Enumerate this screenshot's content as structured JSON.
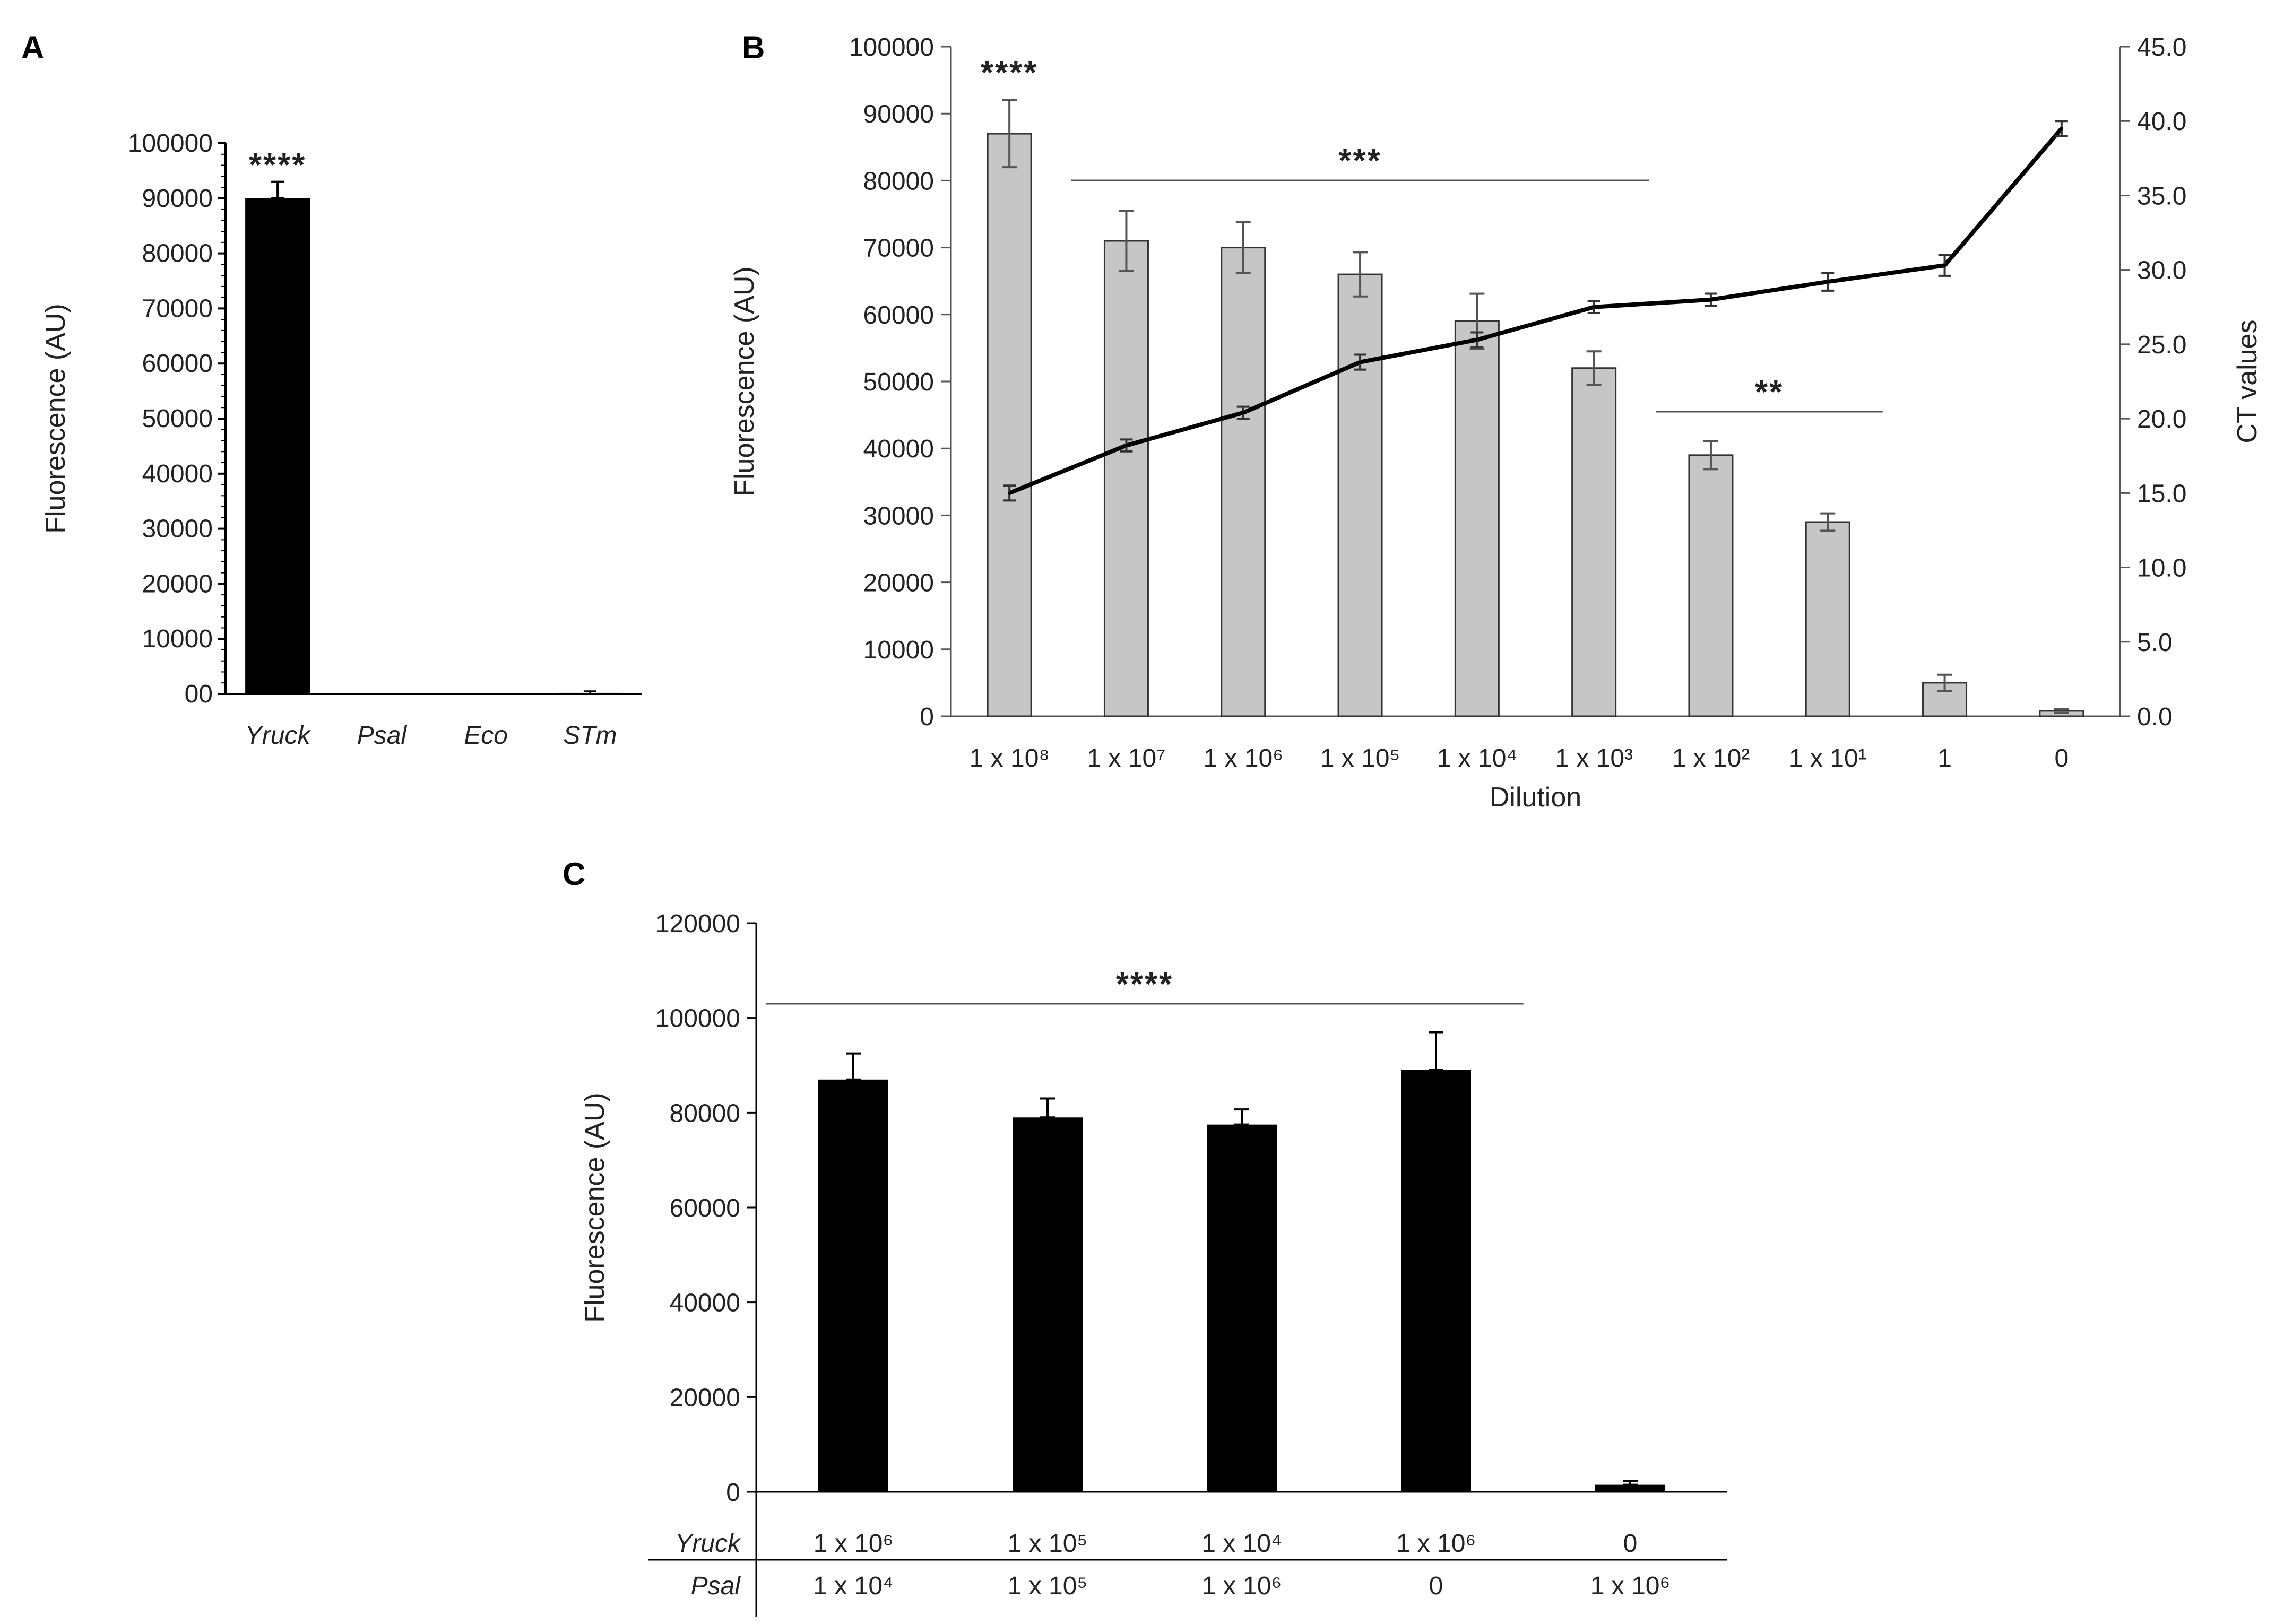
{
  "chart_data": [
    {
      "panel": "A",
      "type": "bar",
      "categories": [
        "Yruck",
        "Psal",
        "Eco",
        "STm"
      ],
      "values": [
        90000,
        0,
        0,
        200
      ],
      "errors": [
        3000,
        0,
        0,
        300
      ],
      "ylabel": "Fluorescence (AU)",
      "ylim": [
        0,
        100000
      ],
      "yticks": [
        "00",
        "10000",
        "20000",
        "30000",
        "40000",
        "50000",
        "60000",
        "70000",
        "80000",
        "90000",
        "100000"
      ],
      "annotations": [
        {
          "text": "****",
          "category": "Yruck"
        }
      ],
      "colors": {
        "bar": "#000000"
      }
    },
    {
      "panel": "B",
      "type": "bar",
      "categories": [
        "1 x 10⁸",
        "1 x 10⁷",
        "1 x 10⁶",
        "1 x 10⁵",
        "1 x 10⁴",
        "1 x 10³",
        "1 x 10²",
        "1 x 10¹",
        "1",
        "0"
      ],
      "xlabel": "Dilution",
      "ylabel": "Fluorescence (AU)",
      "y2label": "CT values",
      "ylim": [
        0,
        100000
      ],
      "y2lim": [
        0,
        45
      ],
      "yticks": [
        "0",
        "10000",
        "20000",
        "30000",
        "40000",
        "50000",
        "60000",
        "70000",
        "80000",
        "90000",
        "100000"
      ],
      "y2ticks": [
        "0.0",
        "5.0",
        "10.0",
        "15.0",
        "20.0",
        "25.0",
        "30.0",
        "35.0",
        "40.0",
        "45.0"
      ],
      "series": [
        {
          "name": "Fluorescence",
          "type": "bar",
          "axis": "left",
          "values": [
            87000,
            71000,
            70000,
            66000,
            59000,
            52000,
            39000,
            29000,
            5000,
            800
          ],
          "errors": [
            5000,
            4500,
            3800,
            3300,
            4100,
            2500,
            2100,
            1300,
            1200,
            300
          ]
        },
        {
          "name": "CT values",
          "type": "line",
          "axis": "right",
          "values": [
            15.0,
            18.2,
            20.4,
            23.8,
            25.3,
            27.5,
            28.0,
            29.2,
            30.3,
            39.5
          ],
          "errors": [
            0.5,
            0.4,
            0.4,
            0.5,
            0.5,
            0.4,
            0.4,
            0.6,
            0.7,
            0.5
          ]
        }
      ],
      "annotations": [
        {
          "text": "****",
          "category": "1 x 10⁸"
        },
        {
          "text": "***",
          "from": "1 x 10⁷",
          "to": "1 x 10³"
        },
        {
          "text": "**",
          "from": "1 x 10²",
          "to": "1 x 10¹"
        }
      ],
      "colors": {
        "bar": "#c6c6c6",
        "bar_edge": "#333333",
        "line": "#000000",
        "error": "#555555"
      }
    },
    {
      "panel": "C",
      "type": "bar",
      "ylabel": "Fluorescence (AU)",
      "ylim": [
        0,
        120000
      ],
      "yticks": [
        "0",
        "20000",
        "40000",
        "60000",
        "80000",
        "100000",
        "120000"
      ],
      "row_labels": [
        "Yruck",
        "Psal"
      ],
      "rows": {
        "Yruck": [
          "1 x 10⁶",
          "1 x 10⁵",
          "1 x 10⁴",
          "1 x 10⁶",
          "0"
        ],
        "Psal": [
          "1 x 10⁴",
          "1 x 10⁵",
          "1 x 10⁶",
          "0",
          "1 x 10⁶"
        ]
      },
      "values": [
        87000,
        79000,
        77500,
        89000,
        1500
      ],
      "errors": [
        5500,
        4000,
        3200,
        8000,
        800
      ],
      "annotations": [
        {
          "text": "****",
          "from": 0,
          "to": 3
        }
      ],
      "colors": {
        "bar": "#000000"
      }
    }
  ],
  "panels": {
    "a": "A",
    "b": "B",
    "c": "C"
  }
}
